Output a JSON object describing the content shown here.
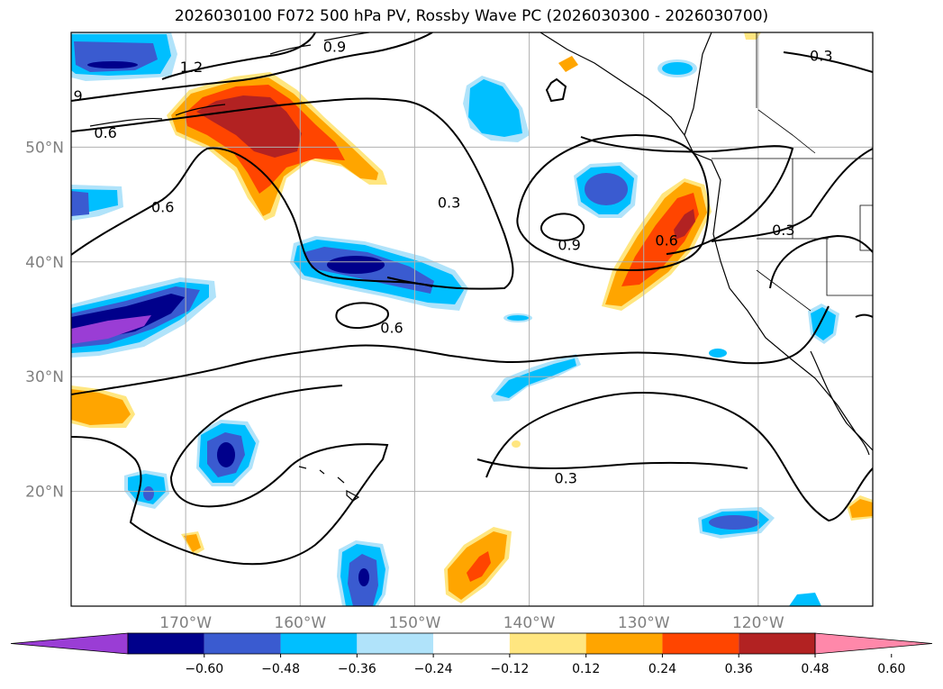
{
  "title": "2026030100 F072 500 hPa PV, Rossby Wave PC (2026030300 - 2026030700)",
  "map": {
    "projection": "lat-lon",
    "region": "North Pacific",
    "lon_range": [
      -180,
      -110
    ],
    "lat_range": [
      10,
      60
    ],
    "gridlines": true,
    "lon_ticks": [
      {
        "lon": -170,
        "label": "170°W"
      },
      {
        "lon": -160,
        "label": "160°W"
      },
      {
        "lon": -150,
        "label": "150°W"
      },
      {
        "lon": -140,
        "label": "140°W"
      },
      {
        "lon": -130,
        "label": "130°W"
      },
      {
        "lon": -120,
        "label": "120°W"
      }
    ],
    "lat_ticks": [
      {
        "lat": 50,
        "label": "50°N"
      },
      {
        "lat": 40,
        "label": "40°N"
      },
      {
        "lat": 30,
        "label": "30°N"
      },
      {
        "lat": 20,
        "label": "20°N"
      }
    ],
    "contour_labels": [
      {
        "text": "1.2",
        "lon": -169.5,
        "lat": 57.0
      },
      {
        "text": "0.9",
        "lon": -157.0,
        "lat": 58.8
      },
      {
        "text": "9",
        "lon": -179.4,
        "lat": 54.5
      },
      {
        "text": "0.6",
        "lon": -177.0,
        "lat": 51.3
      },
      {
        "text": "0.6",
        "lon": -172.0,
        "lat": 44.8
      },
      {
        "text": "0.3",
        "lon": -147.0,
        "lat": 45.2
      },
      {
        "text": "0.9",
        "lon": -136.5,
        "lat": 41.5
      },
      {
        "text": "0.6",
        "lon": -128.0,
        "lat": 41.9
      },
      {
        "text": "0.3",
        "lon": -117.8,
        "lat": 42.8
      },
      {
        "text": "0.3",
        "lon": -114.5,
        "lat": 58.0
      },
      {
        "text": "0.6",
        "lon": -152.0,
        "lat": 34.3
      },
      {
        "text": "0.3",
        "lon": -136.8,
        "lat": 21.2
      }
    ]
  },
  "colorbar": {
    "extend": "both",
    "ticks": [
      "−0.60",
      "−0.48",
      "−0.36",
      "−0.24",
      "−0.12",
      "0.12",
      "0.24",
      "0.36",
      "0.48",
      "0.60"
    ],
    "colors": [
      "#9a3dd5",
      "#00008b",
      "#3a5bd0",
      "#00bfff",
      "#b0e3fa",
      "#ffffff",
      "#ffe680",
      "#ffa500",
      "#ff4500",
      "#b22222",
      "#ff88aa"
    ]
  }
}
